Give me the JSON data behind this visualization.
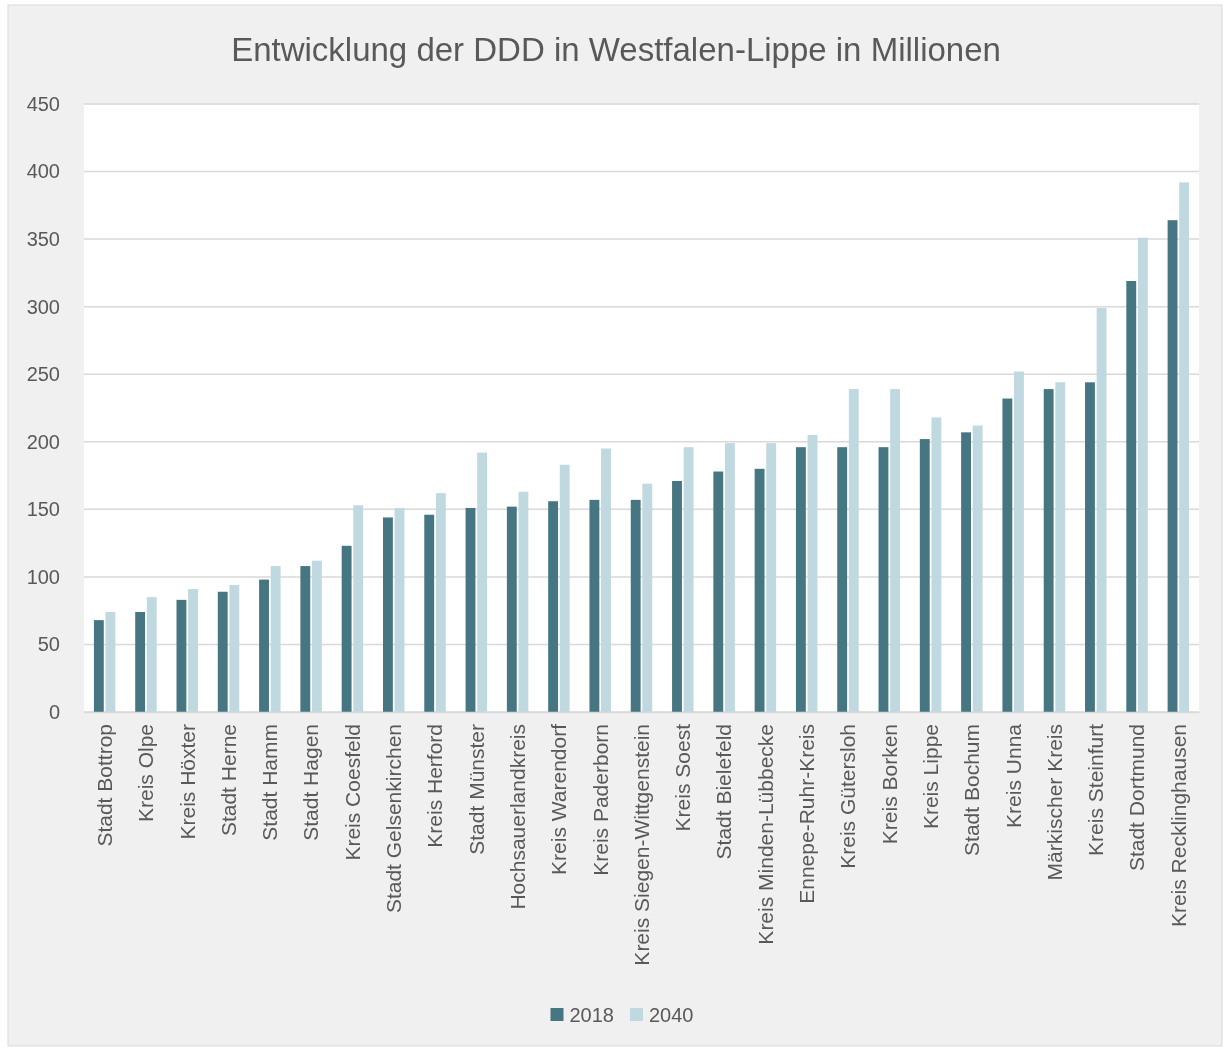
{
  "chart_data": {
    "type": "bar",
    "title": "Entwicklung der DDD in Westfalen-Lippe in Millionen",
    "categories": [
      "Stadt Bottrop",
      "Kreis Olpe",
      "Kreis Höxter",
      "Stadt Herne",
      "Stadt Hamm",
      "Stadt Hagen",
      "Kreis Coesfeld",
      "Stadt Gelsenkirchen",
      "Kreis Herford",
      "Stadt Münster",
      "Hochsauerlandkreis",
      "Kreis Warendorf",
      "Kreis Paderborn",
      "Kreis Siegen-Wittgenstein",
      "Kreis Soest",
      "Stadt Bielefeld",
      "Kreis Minden-Lübbecke",
      "Ennepe-Ruhr-Kreis",
      "Kreis Gütersloh",
      "Kreis Borken",
      "Kreis Lippe",
      "Stadt Bochum",
      "Kreis Unna",
      "Märkischer Kreis",
      "Kreis Steinfurt",
      "Stadt Dortmund",
      "Kreis Recklinghausen"
    ],
    "series": [
      {
        "name": "2018",
        "color": "#457682",
        "values": [
          68,
          74,
          83,
          89,
          98,
          108,
          123,
          144,
          146,
          151,
          152,
          156,
          157,
          157,
          171,
          178,
          180,
          196,
          196,
          196,
          202,
          207,
          232,
          239,
          244,
          319,
          364
        ]
      },
      {
        "name": "2040",
        "color": "#c0d8e0",
        "values": [
          74,
          85,
          91,
          94,
          108,
          112,
          153,
          151,
          162,
          192,
          163,
          183,
          195,
          169,
          196,
          199,
          199,
          205,
          239,
          239,
          218,
          212,
          252,
          244,
          299,
          351,
          392
        ]
      }
    ],
    "ylim": [
      0,
      450
    ],
    "yticks": [
      0,
      50,
      100,
      150,
      200,
      250,
      300,
      350,
      400,
      450
    ],
    "grid": "y",
    "legend": "bottom"
  }
}
